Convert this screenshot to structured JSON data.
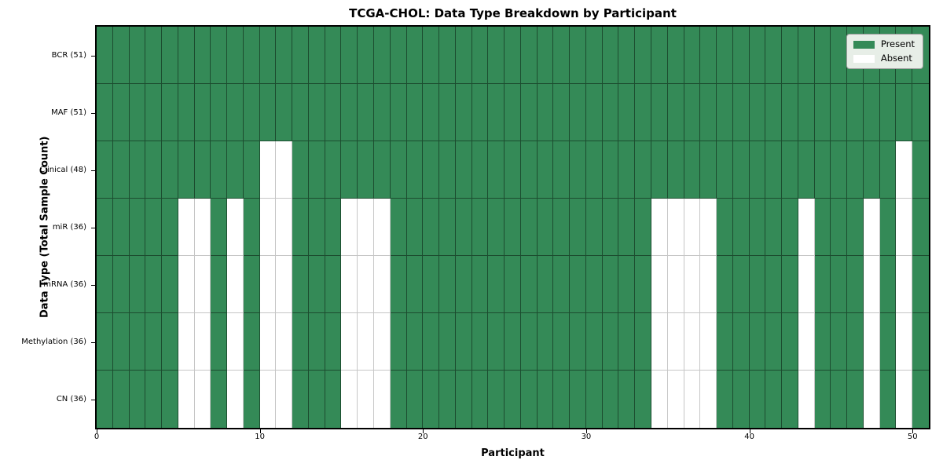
{
  "title": "TCGA-CHOL: Data Type Breakdown by Participant",
  "xlabel": "Participant",
  "ylabel": "Data Type (Total Sample Count)",
  "legend": {
    "present_label": "Present",
    "absent_label": "Absent"
  },
  "colors": {
    "present": "#348a57",
    "absent": "#ffffff",
    "legend_background": "#e7eee7",
    "spine": "#000000"
  },
  "x_ticks": [
    0,
    10,
    20,
    30,
    40,
    50
  ],
  "chart_data": {
    "type": "heatmap",
    "x_axis": {
      "label": "Participant",
      "range": [
        0,
        51
      ],
      "ticks": [
        0,
        10,
        20,
        30,
        40,
        50
      ]
    },
    "n_participants": 51,
    "cell_states": {
      "present": 1,
      "absent": 0
    },
    "rows": [
      {
        "label": "BCR (51)",
        "data_type": "BCR",
        "present_count": 51,
        "absent_participants": []
      },
      {
        "label": "MAF (51)",
        "data_type": "MAF",
        "present_count": 51,
        "absent_participants": []
      },
      {
        "label": "Clinical (48)",
        "data_type": "Clinical",
        "present_count": 48,
        "absent_participants": [
          10,
          11,
          49
        ]
      },
      {
        "label": "miR (36)",
        "data_type": "miR",
        "present_count": 36,
        "absent_participants": [
          5,
          6,
          8,
          10,
          11,
          15,
          16,
          17,
          34,
          35,
          36,
          37,
          43,
          47,
          49
        ]
      },
      {
        "label": "mRNA (36)",
        "data_type": "mRNA",
        "present_count": 36,
        "absent_participants": [
          5,
          6,
          8,
          10,
          11,
          15,
          16,
          17,
          34,
          35,
          36,
          37,
          43,
          47,
          49
        ]
      },
      {
        "label": "Methylation (36)",
        "data_type": "Methylation",
        "present_count": 36,
        "absent_participants": [
          5,
          6,
          8,
          10,
          11,
          15,
          16,
          17,
          34,
          35,
          36,
          37,
          43,
          47,
          49
        ]
      },
      {
        "label": "CN (36)",
        "data_type": "CN",
        "present_count": 36,
        "absent_participants": [
          5,
          6,
          8,
          10,
          11,
          15,
          16,
          17,
          34,
          35,
          36,
          37,
          43,
          47,
          49
        ]
      }
    ],
    "legend_entries": [
      "Present",
      "Absent"
    ],
    "legend_position": "upper right",
    "grid": true
  }
}
